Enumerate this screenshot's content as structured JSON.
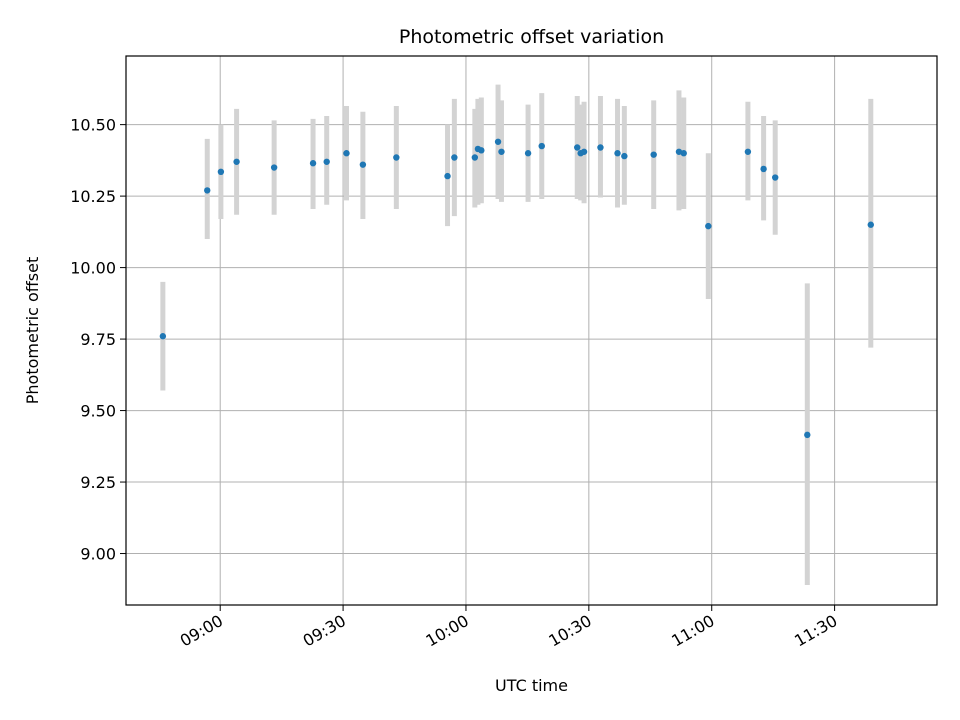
{
  "chart_data": {
    "type": "scatter",
    "title": "Photometric offset variation",
    "xlabel": "UTC time",
    "ylabel": "Photometric offset",
    "x_unit": "UTC time of day (HH:MM)",
    "xlim": [
      "08:37",
      "11:55"
    ],
    "ylim": [
      8.82,
      10.74
    ],
    "x_ticks": [
      "09:00",
      "09:30",
      "10:00",
      "10:30",
      "11:00",
      "11:30"
    ],
    "y_ticks": [
      9.0,
      9.25,
      9.5,
      9.75,
      10.0,
      10.25,
      10.5
    ],
    "y_tick_labels": [
      "9.00",
      "9.25",
      "9.50",
      "9.75",
      "10.00",
      "10.25",
      "10.50"
    ],
    "grid": true,
    "point_color": "#1f77b4",
    "errorbar_color": "#d3d3d3",
    "points": [
      {
        "x": "08:46:00",
        "y": 9.76,
        "ylo": 9.57,
        "yhi": 9.95
      },
      {
        "x": "08:56:50",
        "y": 10.27,
        "ylo": 10.1,
        "yhi": 10.45
      },
      {
        "x": "09:00:10",
        "y": 10.335,
        "ylo": 10.17,
        "yhi": 10.5
      },
      {
        "x": "09:04:00",
        "y": 10.37,
        "ylo": 10.185,
        "yhi": 10.555
      },
      {
        "x": "09:13:10",
        "y": 10.35,
        "ylo": 10.185,
        "yhi": 10.515
      },
      {
        "x": "09:22:40",
        "y": 10.365,
        "ylo": 10.205,
        "yhi": 10.52
      },
      {
        "x": "09:26:00",
        "y": 10.37,
        "ylo": 10.22,
        "yhi": 10.53
      },
      {
        "x": "09:30:50",
        "y": 10.4,
        "ylo": 10.235,
        "yhi": 10.565
      },
      {
        "x": "09:34:50",
        "y": 10.36,
        "ylo": 10.17,
        "yhi": 10.545
      },
      {
        "x": "09:43:00",
        "y": 10.385,
        "ylo": 10.205,
        "yhi": 10.565
      },
      {
        "x": "09:55:30",
        "y": 10.32,
        "ylo": 10.145,
        "yhi": 10.5
      },
      {
        "x": "09:57:10",
        "y": 10.385,
        "ylo": 10.18,
        "yhi": 10.59
      },
      {
        "x": "10:02:10",
        "y": 10.385,
        "ylo": 10.21,
        "yhi": 10.555
      },
      {
        "x": "10:02:55",
        "y": 10.415,
        "ylo": 10.22,
        "yhi": 10.59
      },
      {
        "x": "10:03:45",
        "y": 10.41,
        "ylo": 10.225,
        "yhi": 10.595
      },
      {
        "x": "10:07:50",
        "y": 10.44,
        "ylo": 10.24,
        "yhi": 10.64
      },
      {
        "x": "10:08:40",
        "y": 10.405,
        "ylo": 10.23,
        "yhi": 10.585
      },
      {
        "x": "10:15:10",
        "y": 10.4,
        "ylo": 10.23,
        "yhi": 10.57
      },
      {
        "x": "10:18:30",
        "y": 10.425,
        "ylo": 10.24,
        "yhi": 10.61
      },
      {
        "x": "10:27:10",
        "y": 10.42,
        "ylo": 10.24,
        "yhi": 10.6
      },
      {
        "x": "10:28:00",
        "y": 10.4,
        "ylo": 10.235,
        "yhi": 10.57
      },
      {
        "x": "10:28:50",
        "y": 10.405,
        "ylo": 10.225,
        "yhi": 10.58
      },
      {
        "x": "10:32:50",
        "y": 10.42,
        "ylo": 10.245,
        "yhi": 10.6
      },
      {
        "x": "10:37:00",
        "y": 10.4,
        "ylo": 10.21,
        "yhi": 10.59
      },
      {
        "x": "10:38:40",
        "y": 10.39,
        "ylo": 10.22,
        "yhi": 10.565
      },
      {
        "x": "10:45:50",
        "y": 10.395,
        "ylo": 10.205,
        "yhi": 10.585
      },
      {
        "x": "10:52:00",
        "y": 10.405,
        "ylo": 10.2,
        "yhi": 10.62
      },
      {
        "x": "10:53:10",
        "y": 10.4,
        "ylo": 10.205,
        "yhi": 10.595
      },
      {
        "x": "10:59:10",
        "y": 10.145,
        "ylo": 9.89,
        "yhi": 10.4
      },
      {
        "x": "11:08:50",
        "y": 10.405,
        "ylo": 10.235,
        "yhi": 10.58
      },
      {
        "x": "11:12:40",
        "y": 10.345,
        "ylo": 10.165,
        "yhi": 10.53
      },
      {
        "x": "11:15:30",
        "y": 10.315,
        "ylo": 10.115,
        "yhi": 10.515
      },
      {
        "x": "11:23:20",
        "y": 9.415,
        "ylo": 8.89,
        "yhi": 9.945
      },
      {
        "x": "11:38:50",
        "y": 10.15,
        "ylo": 9.72,
        "yhi": 10.59
      }
    ]
  }
}
